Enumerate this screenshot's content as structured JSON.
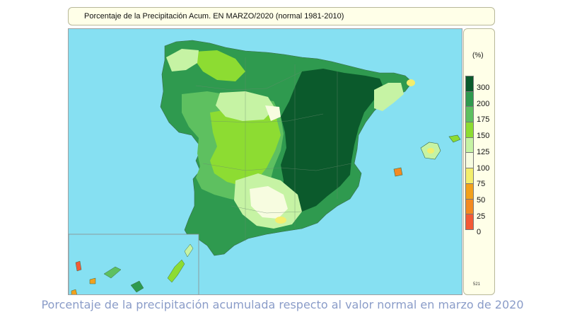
{
  "title": "Porcentaje de la Precipitación Acum. EN MARZO/2020 (normal 1981-2010)",
  "caption": "Porcentaje de la precipitación acumulada respecto al valor normal en marzo de 2020",
  "legend": {
    "unit": "(%)",
    "code": "521",
    "entries": [
      {
        "label": "300",
        "color": "#0b5a2c"
      },
      {
        "label": "200",
        "color": "#2f9a4f"
      },
      {
        "label": "175",
        "color": "#5ec060"
      },
      {
        "label": "150",
        "color": "#8ddc32"
      },
      {
        "label": "125",
        "color": "#c6f3a4"
      },
      {
        "label": "100",
        "color": "#f7fce0"
      },
      {
        "label": "75",
        "color": "#f3ee6c"
      },
      {
        "label": "50",
        "color": "#f2a11c"
      },
      {
        "label": "25",
        "color": "#f38a22"
      },
      {
        "label": "0",
        "color": "#f35a36"
      }
    ]
  },
  "colors": {
    "sea": "#86e0f2",
    "class_300": "#0b5a2c",
    "class_200": "#2f9a4f",
    "class_175": "#5ec060",
    "class_150": "#8ddc32",
    "class_125": "#c6f3a4",
    "class_100": "#f7fce0",
    "class_75": "#f3ee6c",
    "class_50": "#f2a11c",
    "class_25": "#f38a22",
    "class_0": "#f35a36"
  }
}
